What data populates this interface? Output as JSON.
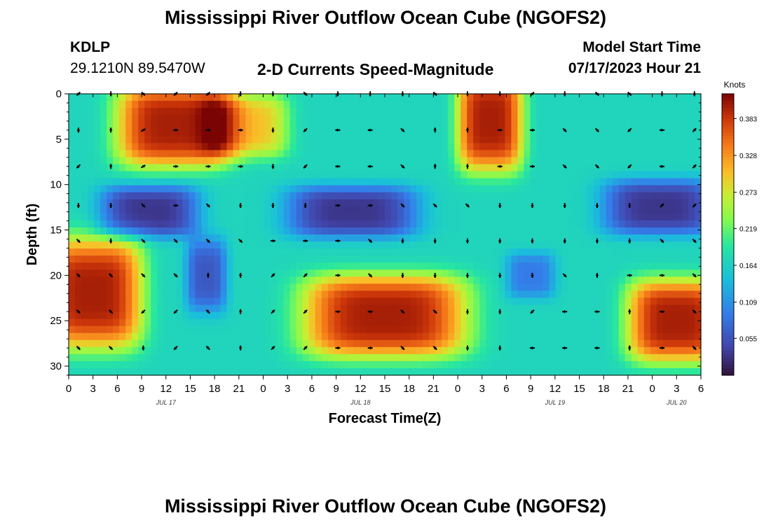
{
  "header": {
    "title": "Mississippi River Outflow Ocean Cube (NGOFS2)",
    "station_id": "KDLP",
    "station_coords": "29.1210N  89.5470W",
    "plot_title": "2-D Currents Speed-Magnitude",
    "model_start_label": "Model Start Time",
    "model_start_value": "07/17/2023 Hour 21"
  },
  "footer": {
    "title": "Mississippi River Outflow Ocean Cube (NGOFS2)"
  },
  "chart_data": {
    "type": "heatmap",
    "title": "2-D Currents Speed-Magnitude",
    "xlabel": "Forecast Time(Z)",
    "ylabel": "Depth (ft)",
    "x_unit": "hours since JUL 17 00Z",
    "x_range": [
      0,
      78
    ],
    "y_range": [
      0,
      31
    ],
    "x_tick_labels": [
      "0",
      "3",
      "6",
      "9",
      "12",
      "15",
      "18",
      "21",
      "0",
      "3",
      "6",
      "9",
      "12",
      "15",
      "18",
      "21",
      "0",
      "3",
      "6",
      "9",
      "12",
      "15",
      "18",
      "21",
      "0",
      "3",
      "6"
    ],
    "y_ticks": [
      0,
      5,
      10,
      15,
      20,
      25,
      30
    ],
    "date_labels": [
      {
        "label": "JUL 17",
        "hour": 12
      },
      {
        "label": "JUL 18",
        "hour": 36
      },
      {
        "label": "JUL 19",
        "hour": 60
      },
      {
        "label": "JUL 20",
        "hour": 75
      }
    ],
    "colorbar": {
      "unit": "Knots",
      "min": 0.0,
      "max": 0.42,
      "ticks": [
        "0.383",
        "0.328",
        "0.273",
        "0.219",
        "0.164",
        "0.109",
        "0.055"
      ]
    },
    "speed_features": [
      {
        "name": "surface-high-1",
        "hour": 13,
        "depth": 3.5,
        "hw": 7,
        "hd": 4.5,
        "speed": 0.4
      },
      {
        "name": "surface-high-1b",
        "hour": 22,
        "depth": 3.5,
        "hw": 5,
        "hd": 3.5,
        "speed": 0.3
      },
      {
        "name": "surface-high-2",
        "hour": 52,
        "depth": 3,
        "hw": 4,
        "hd": 5.5,
        "speed": 0.4
      },
      {
        "name": "mid-low-1",
        "hour": 10,
        "depth": 13,
        "hw": 6,
        "hd": 2.8,
        "speed": 0.03
      },
      {
        "name": "mid-low-1b",
        "hour": 17,
        "depth": 20,
        "hw": 2.5,
        "hd": 4,
        "speed": 0.06
      },
      {
        "name": "mid-low-2",
        "hour": 35,
        "depth": 13,
        "hw": 8,
        "hd": 2.8,
        "speed": 0.03
      },
      {
        "name": "mid-low-3",
        "hour": 73,
        "depth": 12.5,
        "hw": 7,
        "hd": 3,
        "speed": 0.03
      },
      {
        "name": "mid-low-4",
        "hour": 57,
        "depth": 20,
        "hw": 3,
        "hd": 2.5,
        "speed": 0.09
      },
      {
        "name": "bottom-high-1",
        "hour": 3,
        "depth": 22,
        "hw": 6,
        "hd": 6,
        "speed": 0.4
      },
      {
        "name": "bottom-high-2",
        "hour": 39,
        "depth": 24.5,
        "hw": 10,
        "hd": 4.5,
        "speed": 0.4
      },
      {
        "name": "bottom-high-3",
        "hour": 75,
        "depth": 25,
        "hw": 6,
        "hd": 4.5,
        "speed": 0.4
      }
    ],
    "arrow_hours": [
      0,
      4,
      8,
      12,
      16,
      20,
      24,
      28,
      32,
      36,
      40,
      44,
      48,
      52,
      56,
      60,
      64,
      68,
      72,
      76
    ],
    "arrow_depths": [
      0,
      4,
      8,
      12.3,
      16.2,
      20,
      24,
      28
    ],
    "arrow_angles_deg": [
      [
        135,
        90,
        45,
        135,
        135,
        90,
        90,
        45,
        90,
        90,
        90,
        45,
        90,
        90,
        135,
        90,
        45,
        45,
        90,
        90
      ],
      [
        90,
        270,
        330,
        0,
        0,
        0,
        90,
        135,
        180,
        180,
        45,
        270,
        270,
        0,
        0,
        45,
        45,
        135,
        180,
        315
      ],
      [
        135,
        270,
        330,
        0,
        0,
        0,
        90,
        135,
        180,
        180,
        45,
        270,
        270,
        0,
        0,
        45,
        45,
        135,
        180,
        315
      ],
      [
        90,
        90,
        45,
        0,
        45,
        90,
        90,
        90,
        0,
        0,
        45,
        45,
        45,
        90,
        90,
        90,
        90,
        90,
        315,
        315
      ],
      [
        45,
        90,
        45,
        45,
        45,
        45,
        0,
        0,
        0,
        45,
        90,
        90,
        90,
        90,
        90,
        90,
        90,
        90,
        45,
        45
      ],
      [
        45,
        45,
        45,
        45,
        270,
        270,
        315,
        315,
        0,
        45,
        90,
        90,
        90,
        90,
        90,
        45,
        270,
        0,
        0,
        45
      ],
      [
        45,
        45,
        135,
        135,
        225,
        270,
        315,
        315,
        0,
        0,
        45,
        45,
        90,
        90,
        135,
        180,
        180,
        270,
        0,
        45
      ],
      [
        45,
        45,
        90,
        135,
        225,
        270,
        315,
        315,
        0,
        0,
        45,
        45,
        90,
        90,
        180,
        180,
        180,
        270,
        0,
        45
      ]
    ]
  }
}
